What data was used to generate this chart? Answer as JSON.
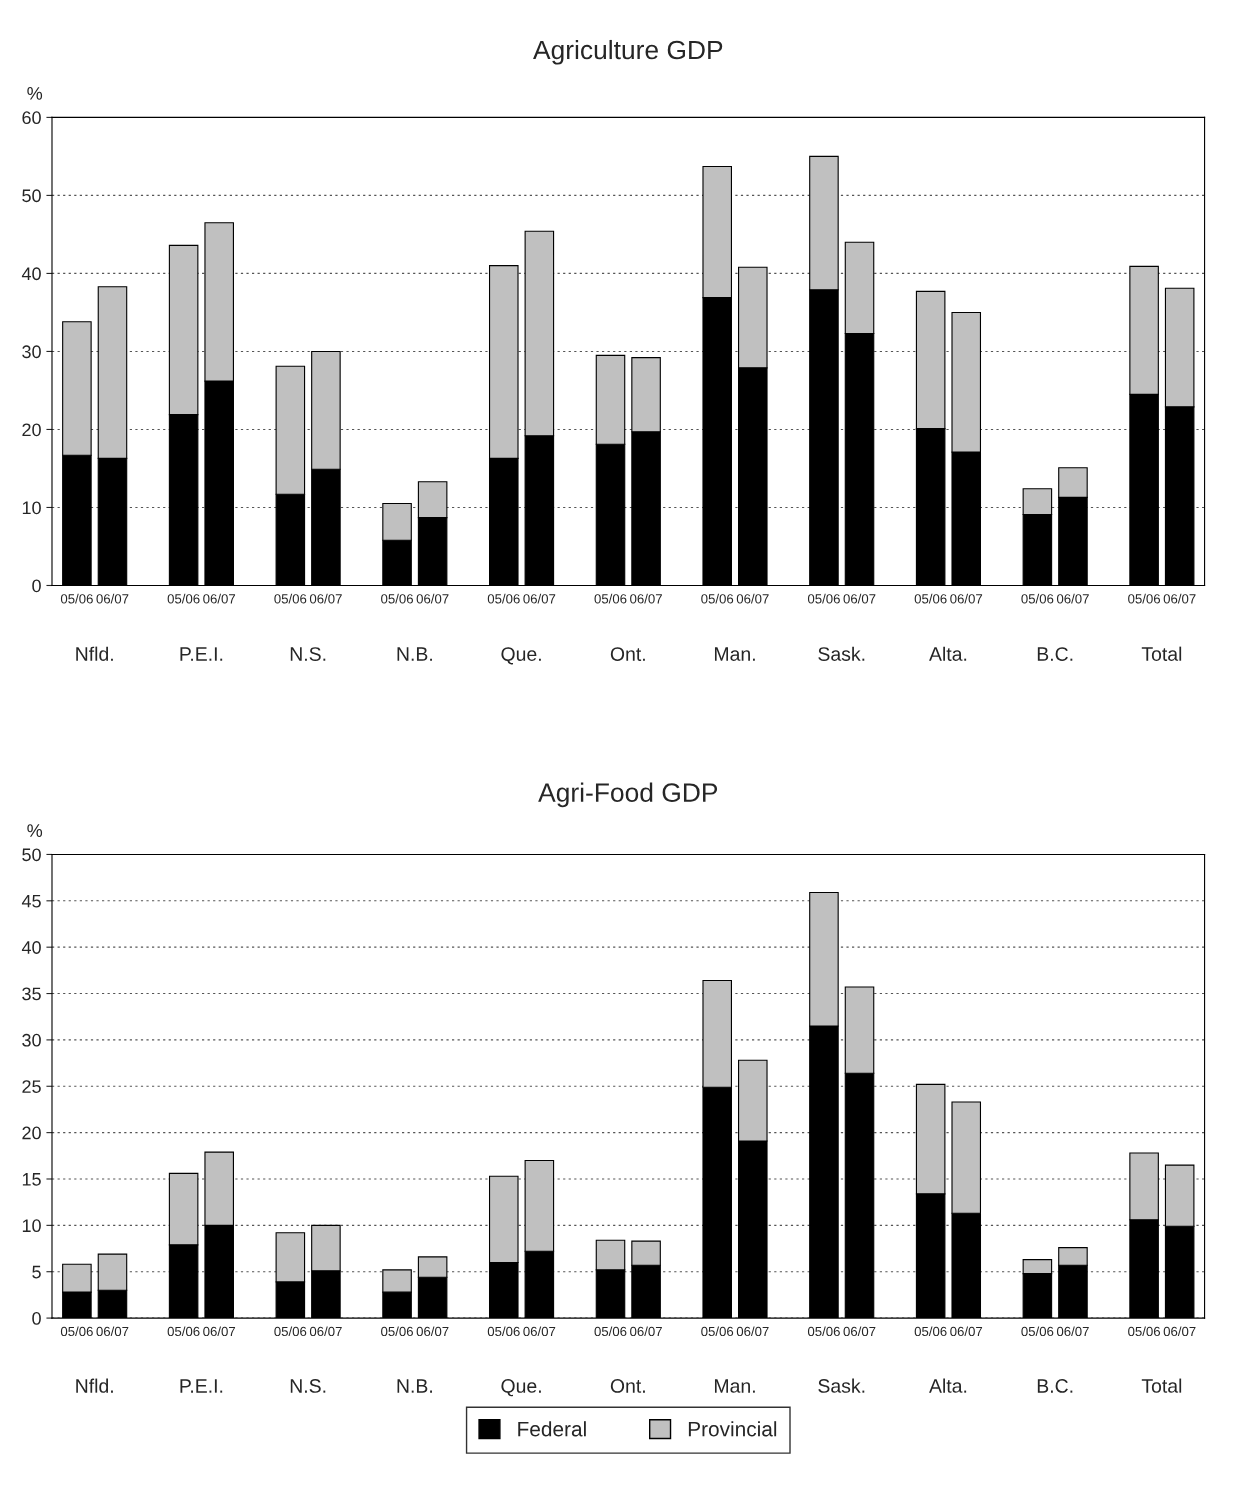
{
  "chart_data": [
    {
      "type": "bar",
      "title": "Agriculture GDP",
      "ylabel": "%",
      "stacked": true,
      "categories": [
        "05/06",
        "06/07",
        "05/06",
        "06/07",
        "05/06",
        "06/07",
        "05/06",
        "06/07",
        "05/06",
        "06/07",
        "05/06",
        "06/07",
        "05/06",
        "06/07",
        "05/06",
        "06/07",
        "05/06",
        "06/07",
        "05/06",
        "06/07",
        "05/06",
        "06/07"
      ],
      "annotations": [
        "Nfld.",
        "P.E.I.",
        "N.S.",
        "N.B.",
        "Que.",
        "Ont.",
        "Man.",
        "Sask.",
        "Alta.",
        "B.C.",
        "Total"
      ],
      "series": [
        {
          "color": "#000000",
          "values": [
            16.7,
            16.3,
            21.9,
            26.2,
            11.7,
            14.9,
            5.8,
            8.7,
            16.3,
            19.2,
            18.1,
            19.7,
            36.9,
            27.9,
            37.9,
            32.3,
            20.1,
            17.1,
            9.1,
            11.3,
            24.5,
            22.9
          ]
        },
        {
          "color": "#c0c0c0",
          "values": [
            17.1,
            22.0,
            21.7,
            20.3,
            16.4,
            15.1,
            4.7,
            4.6,
            24.7,
            26.2,
            11.4,
            9.5,
            16.8,
            12.9,
            17.1,
            11.7,
            17.6,
            17.9,
            3.3,
            3.8,
            16.4,
            15.2
          ]
        }
      ],
      "ylim": [
        0,
        60
      ],
      "yticks": [
        0,
        10,
        20,
        30,
        40,
        50,
        60
      ],
      "grid": "y"
    },
    {
      "type": "bar",
      "title": "Agri-Food GDP",
      "ylabel": "%",
      "stacked": true,
      "categories": [
        "05/06",
        "06/07",
        "05/06",
        "06/07",
        "05/06",
        "06/07",
        "05/06",
        "06/07",
        "05/06",
        "06/07",
        "05/06",
        "06/07",
        "05/06",
        "06/07",
        "05/06",
        "06/07",
        "05/06",
        "06/07",
        "05/06",
        "06/07",
        "05/06",
        "06/07"
      ],
      "annotations": [
        "Nfld.",
        "P.E.I.",
        "N.S.",
        "N.B.",
        "Que.",
        "Ont.",
        "Man.",
        "Sask.",
        "Alta.",
        "B.C.",
        "Total"
      ],
      "series": [
        {
          "name": "Federal",
          "color": "#000000",
          "values": [
            2.8,
            3.0,
            7.9,
            10.0,
            3.9,
            5.1,
            2.8,
            4.4,
            6.0,
            7.2,
            5.2,
            5.7,
            24.9,
            19.1,
            31.5,
            26.4,
            13.4,
            11.3,
            4.8,
            5.7,
            10.6,
            9.9
          ]
        },
        {
          "name": "Provincial",
          "color": "#c0c0c0",
          "values": [
            3.0,
            3.9,
            7.7,
            7.9,
            5.3,
            4.9,
            2.4,
            2.2,
            9.3,
            9.8,
            3.2,
            2.6,
            11.5,
            8.7,
            14.4,
            9.3,
            11.8,
            12.0,
            1.5,
            1.9,
            7.2,
            6.6
          ]
        }
      ],
      "ylim": [
        0,
        50
      ],
      "yticks": [
        0,
        5,
        10,
        15,
        20,
        25,
        30,
        35,
        40,
        45,
        50
      ],
      "grid": "y",
      "legend": "bottom"
    }
  ]
}
